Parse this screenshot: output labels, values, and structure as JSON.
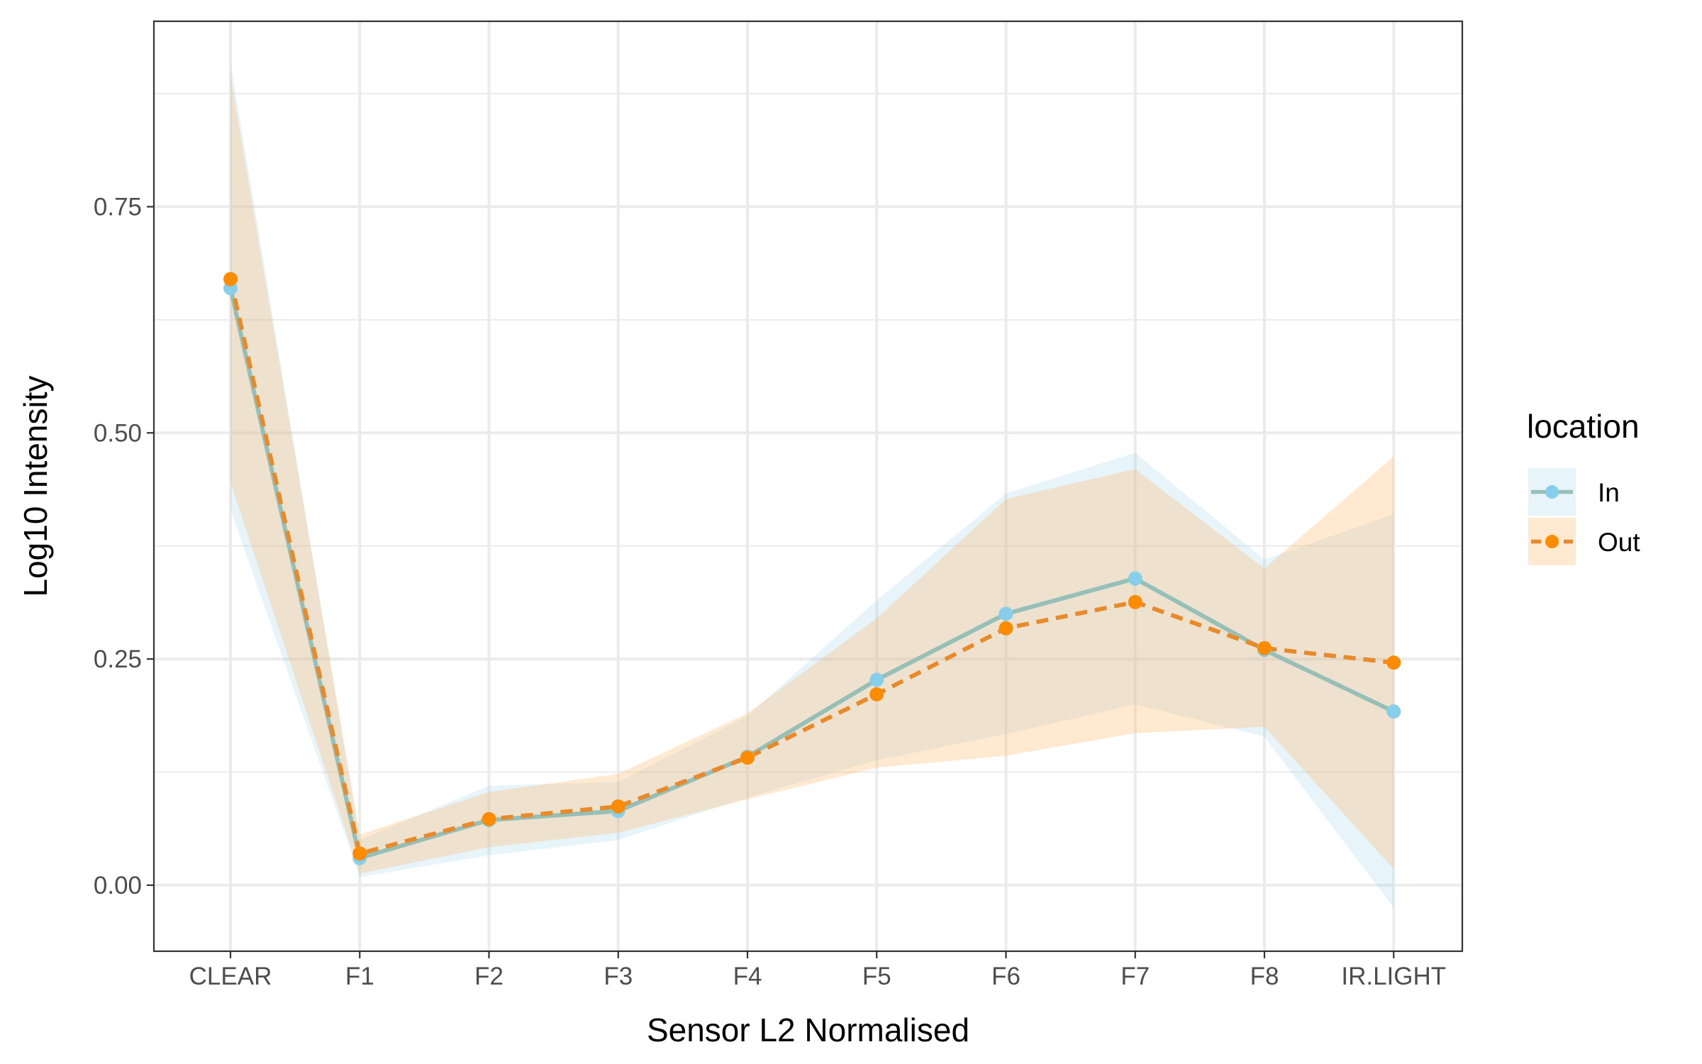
{
  "chart_data": {
    "type": "line",
    "title": "",
    "xlabel": "Sensor L2 Normalised",
    "ylabel": "Log10 Intensity",
    "categories": [
      "CLEAR",
      "F1",
      "F2",
      "F3",
      "F4",
      "F5",
      "F6",
      "F7",
      "F8",
      "IR.LIGHT"
    ],
    "ylim": [
      -0.073,
      0.955
    ],
    "yticks": [
      0.0,
      0.25,
      0.5,
      0.75
    ],
    "ytick_labels": [
      "0.00",
      "0.25",
      "0.50",
      "0.75"
    ],
    "grid": true,
    "legend": {
      "title": "location",
      "position": "right"
    },
    "series": [
      {
        "name": "In",
        "color": "#87CEEB",
        "line_color": "#96BFB8",
        "band_color": "#87CEEB",
        "dashed": false,
        "values": [
          0.66,
          0.03,
          0.072,
          0.082,
          0.142,
          0.227,
          0.3,
          0.339,
          0.26,
          0.192
        ],
        "lower": [
          0.415,
          0.009,
          0.033,
          0.05,
          0.097,
          0.138,
          0.167,
          0.2,
          0.164,
          -0.025
        ],
        "upper": [
          0.91,
          0.05,
          0.11,
          0.114,
          0.187,
          0.315,
          0.433,
          0.478,
          0.36,
          0.41
        ]
      },
      {
        "name": "Out",
        "color": "#FF8C00",
        "line_color": "#E8892A",
        "band_color": "#FFB666",
        "dashed": true,
        "values": [
          0.67,
          0.035,
          0.073,
          0.087,
          0.141,
          0.211,
          0.284,
          0.313,
          0.262,
          0.246
        ],
        "lower": [
          0.445,
          0.013,
          0.042,
          0.058,
          0.095,
          0.13,
          0.143,
          0.168,
          0.175,
          0.018
        ],
        "upper": [
          0.895,
          0.056,
          0.103,
          0.123,
          0.19,
          0.295,
          0.427,
          0.46,
          0.35,
          0.474
        ]
      }
    ]
  }
}
